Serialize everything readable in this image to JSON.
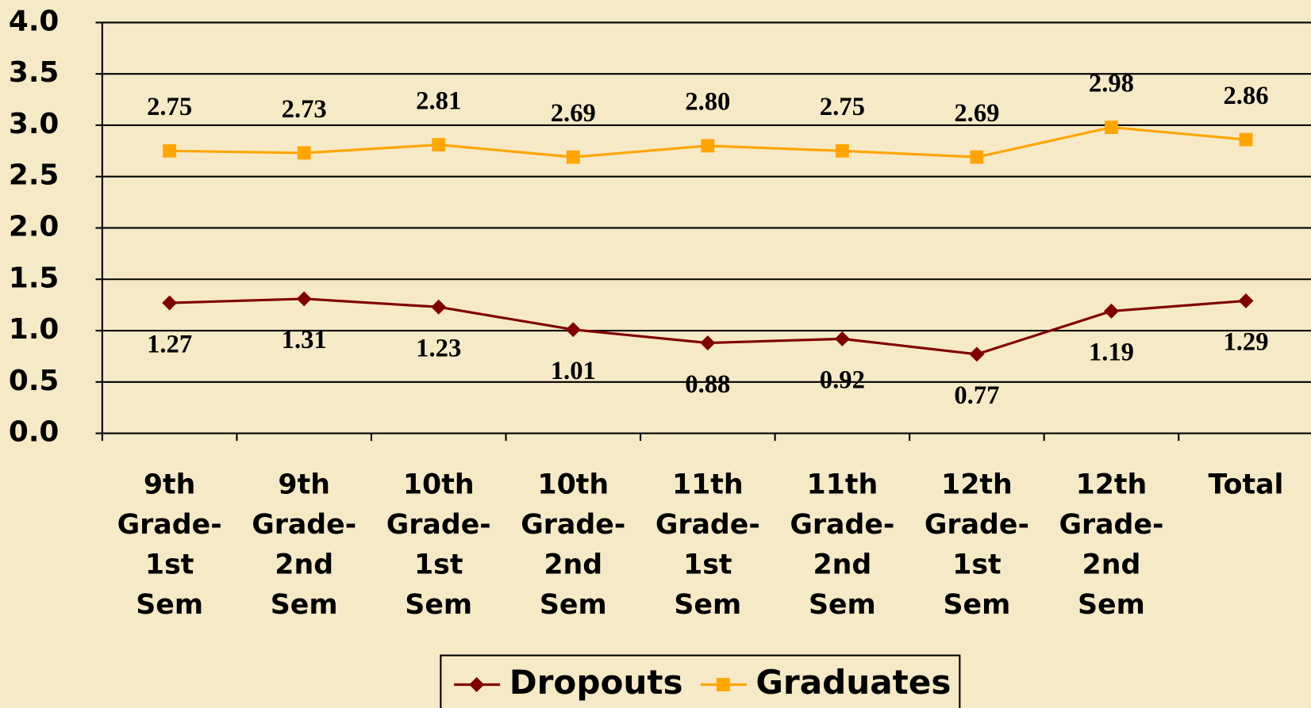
{
  "chart_data": {
    "type": "line",
    "categories": [
      "9th Grade-1st Sem",
      "9th Grade-2nd Sem",
      "10th Grade-1st Sem",
      "10th Grade-2nd Sem",
      "11th Grade-1st Sem",
      "11th Grade-2nd Sem",
      "12th Grade-1st Sem",
      "12th Grade-2nd Sem",
      "Total"
    ],
    "series": [
      {
        "name": "Dropouts",
        "color": "#800000",
        "marker": "diamond",
        "values": [
          1.27,
          1.31,
          1.23,
          1.01,
          0.88,
          0.92,
          0.77,
          1.19,
          1.29
        ]
      },
      {
        "name": "Graduates",
        "color": "#ffa500",
        "marker": "square",
        "values": [
          2.75,
          2.73,
          2.81,
          2.69,
          2.8,
          2.75,
          2.69,
          2.98,
          2.86
        ],
        "value_labels": [
          "2.75",
          "2.73",
          "2.81",
          "2.69",
          "2.80",
          "2.75",
          "2.69",
          "2.98",
          "2.86"
        ]
      }
    ],
    "ylim": [
      0,
      4
    ],
    "yticks": [
      {
        "value": 0,
        "label": "0.0"
      },
      {
        "value": 0.5,
        "label": "0.5"
      },
      {
        "value": 1,
        "label": "1.0"
      },
      {
        "value": 1.5,
        "label": "1.5"
      },
      {
        "value": 2,
        "label": "2.0"
      },
      {
        "value": 2.5,
        "label": "2.5"
      },
      {
        "value": 3,
        "label": "3.0"
      },
      {
        "value": 3.5,
        "label": "3.5"
      },
      {
        "value": 4,
        "label": "4.0"
      }
    ],
    "grid": true,
    "legend": "bottom"
  }
}
